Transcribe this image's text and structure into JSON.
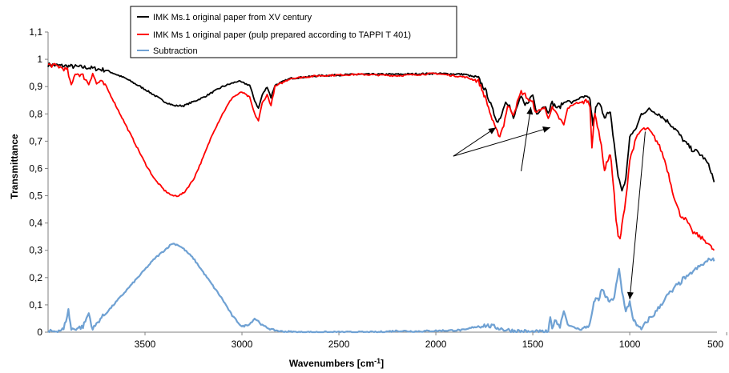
{
  "chart_data": {
    "type": "line",
    "xlabel": "Wavenumbers [cm",
    "xlabel_sup": "-1",
    "xlabel_close": "]",
    "ylabel": "Transmittance",
    "xlim": [
      4000,
      550
    ],
    "ylim": [
      0,
      1.1
    ],
    "x_ticks": [
      3500,
      3000,
      2500,
      2000,
      1500,
      1000,
      500
    ],
    "y_ticks": [
      "0",
      "0,1",
      "0,2",
      "0,3",
      "0,4",
      "0,5",
      "0,6",
      "0,7",
      "0,8",
      "0,9",
      "1",
      "1,1"
    ],
    "grid": false,
    "legend_position": "top-center",
    "series": [
      {
        "name": "IMK Ms.1 original paper from XV century",
        "color": "#000000",
        "points": [
          [
            4000,
            0.98
          ],
          [
            3900,
            0.975
          ],
          [
            3800,
            0.97
          ],
          [
            3700,
            0.96
          ],
          [
            3600,
            0.93
          ],
          [
            3500,
            0.89
          ],
          [
            3400,
            0.845
          ],
          [
            3350,
            0.83
          ],
          [
            3300,
            0.83
          ],
          [
            3200,
            0.86
          ],
          [
            3100,
            0.9
          ],
          [
            3020,
            0.92
          ],
          [
            2960,
            0.905
          ],
          [
            2935,
            0.85
          ],
          [
            2915,
            0.82
          ],
          [
            2895,
            0.87
          ],
          [
            2870,
            0.9
          ],
          [
            2850,
            0.86
          ],
          [
            2830,
            0.905
          ],
          [
            2750,
            0.93
          ],
          [
            2600,
            0.94
          ],
          [
            2400,
            0.945
          ],
          [
            2200,
            0.945
          ],
          [
            2000,
            0.948
          ],
          [
            1850,
            0.945
          ],
          [
            1780,
            0.93
          ],
          [
            1740,
            0.88
          ],
          [
            1700,
            0.8
          ],
          [
            1680,
            0.77
          ],
          [
            1660,
            0.8
          ],
          [
            1640,
            0.85
          ],
          [
            1620,
            0.83
          ],
          [
            1600,
            0.78
          ],
          [
            1580,
            0.83
          ],
          [
            1560,
            0.86
          ],
          [
            1540,
            0.83
          ],
          [
            1520,
            0.85
          ],
          [
            1500,
            0.87
          ],
          [
            1480,
            0.8
          ],
          [
            1460,
            0.82
          ],
          [
            1440,
            0.83
          ],
          [
            1420,
            0.81
          ],
          [
            1400,
            0.84
          ],
          [
            1370,
            0.82
          ],
          [
            1340,
            0.84
          ],
          [
            1320,
            0.85
          ],
          [
            1300,
            0.84
          ],
          [
            1280,
            0.85
          ],
          [
            1250,
            0.86
          ],
          [
            1220,
            0.86
          ],
          [
            1205,
            0.85
          ],
          [
            1190,
            0.76
          ],
          [
            1175,
            0.82
          ],
          [
            1160,
            0.84
          ],
          [
            1140,
            0.81
          ],
          [
            1130,
            0.79
          ],
          [
            1115,
            0.8
          ],
          [
            1100,
            0.8
          ],
          [
            1080,
            0.69
          ],
          [
            1060,
            0.57
          ],
          [
            1040,
            0.52
          ],
          [
            1020,
            0.56
          ],
          [
            1000,
            0.72
          ],
          [
            980,
            0.73
          ],
          [
            960,
            0.76
          ],
          [
            940,
            0.8
          ],
          [
            920,
            0.81
          ],
          [
            900,
            0.815
          ],
          [
            880,
            0.81
          ],
          [
            850,
            0.8
          ],
          [
            820,
            0.78
          ],
          [
            800,
            0.77
          ],
          [
            760,
            0.74
          ],
          [
            720,
            0.7
          ],
          [
            680,
            0.67
          ],
          [
            650,
            0.66
          ],
          [
            620,
            0.64
          ],
          [
            600,
            0.62
          ],
          [
            580,
            0.59
          ],
          [
            565,
            0.55
          ]
        ]
      },
      {
        "name": "IMK Ms 1 original paper (pulp prepared according to TAPPI T 401)",
        "color": "#ff0000",
        "points": [
          [
            4000,
            0.98
          ],
          [
            3950,
            0.975
          ],
          [
            3900,
            0.96
          ],
          [
            3880,
            0.9
          ],
          [
            3860,
            0.95
          ],
          [
            3820,
            0.94
          ],
          [
            3790,
            0.91
          ],
          [
            3770,
            0.95
          ],
          [
            3750,
            0.91
          ],
          [
            3730,
            0.92
          ],
          [
            3700,
            0.9
          ],
          [
            3650,
            0.83
          ],
          [
            3600,
            0.76
          ],
          [
            3550,
            0.69
          ],
          [
            3500,
            0.62
          ],
          [
            3450,
            0.56
          ],
          [
            3400,
            0.52
          ],
          [
            3360,
            0.5
          ],
          [
            3330,
            0.5
          ],
          [
            3300,
            0.51
          ],
          [
            3250,
            0.56
          ],
          [
            3200,
            0.64
          ],
          [
            3150,
            0.73
          ],
          [
            3100,
            0.8
          ],
          [
            3050,
            0.86
          ],
          [
            3000,
            0.88
          ],
          [
            2960,
            0.86
          ],
          [
            2935,
            0.8
          ],
          [
            2915,
            0.775
          ],
          [
            2895,
            0.84
          ],
          [
            2870,
            0.87
          ],
          [
            2850,
            0.83
          ],
          [
            2830,
            0.9
          ],
          [
            2750,
            0.93
          ],
          [
            2600,
            0.94
          ],
          [
            2400,
            0.945
          ],
          [
            2200,
            0.94
          ],
          [
            2000,
            0.948
          ],
          [
            1850,
            0.935
          ],
          [
            1780,
            0.92
          ],
          [
            1740,
            0.85
          ],
          [
            1710,
            0.78
          ],
          [
            1690,
            0.74
          ],
          [
            1670,
            0.72
          ],
          [
            1650,
            0.76
          ],
          [
            1630,
            0.83
          ],
          [
            1600,
            0.8
          ],
          [
            1580,
            0.84
          ],
          [
            1560,
            0.88
          ],
          [
            1540,
            0.87
          ],
          [
            1520,
            0.85
          ],
          [
            1500,
            0.84
          ],
          [
            1480,
            0.8
          ],
          [
            1460,
            0.82
          ],
          [
            1440,
            0.82
          ],
          [
            1420,
            0.79
          ],
          [
            1400,
            0.82
          ],
          [
            1370,
            0.79
          ],
          [
            1340,
            0.76
          ],
          [
            1320,
            0.82
          ],
          [
            1300,
            0.83
          ],
          [
            1280,
            0.84
          ],
          [
            1250,
            0.84
          ],
          [
            1220,
            0.85
          ],
          [
            1205,
            0.83
          ],
          [
            1195,
            0.68
          ],
          [
            1180,
            0.8
          ],
          [
            1160,
            0.74
          ],
          [
            1140,
            0.65
          ],
          [
            1130,
            0.59
          ],
          [
            1115,
            0.63
          ],
          [
            1100,
            0.65
          ],
          [
            1085,
            0.55
          ],
          [
            1070,
            0.41
          ],
          [
            1060,
            0.35
          ],
          [
            1050,
            0.34
          ],
          [
            1040,
            0.39
          ],
          [
            1020,
            0.49
          ],
          [
            1000,
            0.63
          ],
          [
            980,
            0.68
          ],
          [
            960,
            0.72
          ],
          [
            940,
            0.74
          ],
          [
            920,
            0.745
          ],
          [
            900,
            0.74
          ],
          [
            880,
            0.72
          ],
          [
            860,
            0.7
          ],
          [
            840,
            0.67
          ],
          [
            820,
            0.63
          ],
          [
            800,
            0.58
          ],
          [
            780,
            0.52
          ],
          [
            760,
            0.47
          ],
          [
            740,
            0.43
          ],
          [
            720,
            0.42
          ],
          [
            700,
            0.4
          ],
          [
            680,
            0.37
          ],
          [
            660,
            0.36
          ],
          [
            640,
            0.35
          ],
          [
            620,
            0.34
          ],
          [
            600,
            0.33
          ],
          [
            580,
            0.31
          ],
          [
            565,
            0.3
          ]
        ]
      },
      {
        "name": "Subtraction",
        "color": "#6fa1d3",
        "points": [
          [
            4000,
            0
          ],
          [
            3920,
            0.01
          ],
          [
            3895,
            0.08
          ],
          [
            3880,
            0.01
          ],
          [
            3820,
            0.02
          ],
          [
            3790,
            0.07
          ],
          [
            3770,
            0.01
          ],
          [
            3750,
            0.03
          ],
          [
            3730,
            0.05
          ],
          [
            3700,
            0.07
          ],
          [
            3650,
            0.11
          ],
          [
            3600,
            0.15
          ],
          [
            3550,
            0.19
          ],
          [
            3500,
            0.23
          ],
          [
            3450,
            0.27
          ],
          [
            3400,
            0.3
          ],
          [
            3360,
            0.325
          ],
          [
            3330,
            0.32
          ],
          [
            3300,
            0.305
          ],
          [
            3250,
            0.27
          ],
          [
            3200,
            0.22
          ],
          [
            3150,
            0.17
          ],
          [
            3100,
            0.12
          ],
          [
            3050,
            0.06
          ],
          [
            3000,
            0.02
          ],
          [
            2960,
            0.03
          ],
          [
            2935,
            0.05
          ],
          [
            2915,
            0.04
          ],
          [
            2895,
            0.025
          ],
          [
            2850,
            0.01
          ],
          [
            2800,
            0.003
          ],
          [
            2700,
            0
          ],
          [
            2500,
            0
          ],
          [
            2300,
            0
          ],
          [
            2200,
            0.005
          ],
          [
            2100,
            0.003
          ],
          [
            2000,
            0.005
          ],
          [
            1850,
            0.008
          ],
          [
            1800,
            0.02
          ],
          [
            1750,
            0.025
          ],
          [
            1700,
            0.02
          ],
          [
            1650,
            0.01
          ],
          [
            1600,
            0.005
          ],
          [
            1500,
            0
          ],
          [
            1420,
            0
          ],
          [
            1410,
            0.05
          ],
          [
            1400,
            0.02
          ],
          [
            1380,
            0.045
          ],
          [
            1360,
            0.02
          ],
          [
            1340,
            0.08
          ],
          [
            1320,
            0.03
          ],
          [
            1300,
            0.02
          ],
          [
            1280,
            0.015
          ],
          [
            1250,
            0.01
          ],
          [
            1220,
            0.02
          ],
          [
            1205,
            0.03
          ],
          [
            1190,
            0.09
          ],
          [
            1175,
            0.13
          ],
          [
            1160,
            0.11
          ],
          [
            1145,
            0.16
          ],
          [
            1130,
            0.14
          ],
          [
            1115,
            0.12
          ],
          [
            1100,
            0.11
          ],
          [
            1080,
            0.13
          ],
          [
            1065,
            0.19
          ],
          [
            1055,
            0.23
          ],
          [
            1040,
            0.15
          ],
          [
            1020,
            0.08
          ],
          [
            1000,
            0.11
          ],
          [
            985,
            0.05
          ],
          [
            970,
            0.04
          ],
          [
            960,
            0.02
          ],
          [
            940,
            0.01
          ],
          [
            920,
            0.03
          ],
          [
            900,
            0.05
          ],
          [
            880,
            0.06
          ],
          [
            860,
            0.08
          ],
          [
            840,
            0.1
          ],
          [
            820,
            0.12
          ],
          [
            800,
            0.14
          ],
          [
            780,
            0.15
          ],
          [
            760,
            0.17
          ],
          [
            740,
            0.18
          ],
          [
            720,
            0.2
          ],
          [
            700,
            0.2
          ],
          [
            680,
            0.22
          ],
          [
            660,
            0.23
          ],
          [
            640,
            0.24
          ],
          [
            620,
            0.25
          ],
          [
            600,
            0.26
          ],
          [
            580,
            0.27
          ],
          [
            565,
            0.26
          ]
        ]
      }
    ],
    "annotations": [
      {
        "type": "arrow",
        "from": [
          1910,
          0.645
        ],
        "to": [
          1690,
          0.75
        ]
      },
      {
        "type": "arrow",
        "from": [
          1910,
          0.645
        ],
        "to": [
          1410,
          0.75
        ]
      },
      {
        "type": "arrow",
        "from": [
          1560,
          0.59
        ],
        "to": [
          1510,
          0.825
        ]
      },
      {
        "type": "arrow",
        "from": [
          920,
          0.735
        ],
        "to": [
          1000,
          0.12
        ]
      }
    ]
  }
}
